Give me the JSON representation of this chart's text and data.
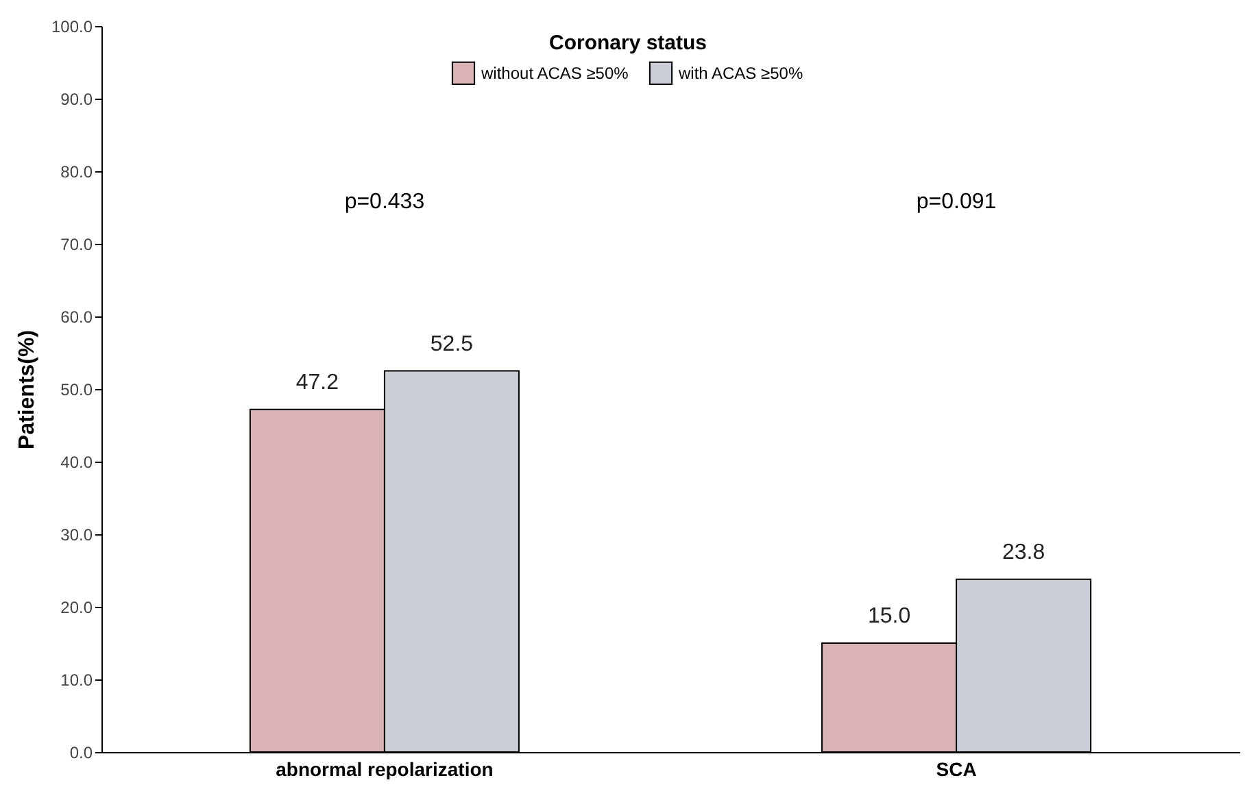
{
  "chart_data": {
    "type": "bar",
    "categories": [
      "abnormal repolarization",
      "SCA"
    ],
    "series": [
      {
        "name": "without ACAS ≥50%",
        "color": "#d9b3b5",
        "values": [
          47.2,
          15.0
        ],
        "value_labels": [
          "47.2",
          "15.0"
        ]
      },
      {
        "name": "with ACAS ≥50%",
        "color": "#cbced6",
        "values": [
          52.5,
          23.8
        ],
        "value_labels": [
          "52.5",
          "23.8"
        ]
      }
    ],
    "ylabel": "Patients(%)",
    "legend_title": "Coronary status",
    "legend": "top",
    "ylim": [
      0,
      100
    ],
    "yticks": [
      {
        "value": 0,
        "label": "0.0"
      },
      {
        "value": 10,
        "label": "10.0"
      },
      {
        "value": 20,
        "label": "20.0"
      },
      {
        "value": 30,
        "label": "30.0"
      },
      {
        "value": 40,
        "label": "40.0"
      },
      {
        "value": 50,
        "label": "50.0"
      },
      {
        "value": 60,
        "label": "60.0"
      },
      {
        "value": 70,
        "label": "70.0"
      },
      {
        "value": 80,
        "label": "80.0"
      },
      {
        "value": 90,
        "label": "90.0"
      },
      {
        "value": 100,
        "label": "100.0"
      }
    ],
    "grid": false,
    "annotations": [
      "p=0.433",
      "p=0.091"
    ]
  }
}
